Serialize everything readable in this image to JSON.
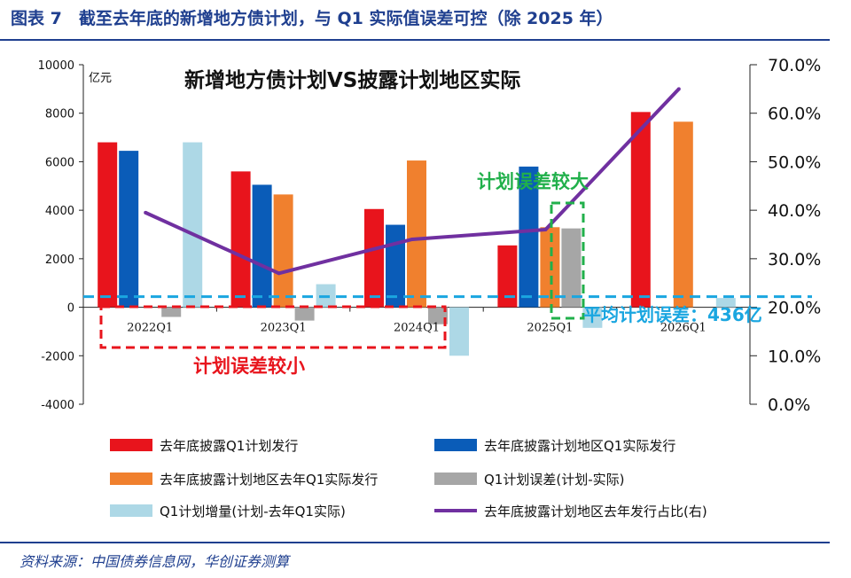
{
  "figure": {
    "title": "图表 7　截至去年底的新增地方债计划，与 Q1 实际值误差可控（除 2025 年）",
    "source": "资料来源：中国债券信息网，华创证券测算"
  },
  "chart_data": {
    "type": "bar",
    "title": "新增地方债计划VS披露计划地区实际",
    "unit_label": "亿元",
    "categories": [
      "2022Q1",
      "2023Q1",
      "2024Q1",
      "2025Q1",
      "2026Q1"
    ],
    "ylim": [
      -4000,
      10000
    ],
    "yticks": [
      -4000,
      -2000,
      0,
      2000,
      4000,
      6000,
      8000,
      10000
    ],
    "y2lim": [
      0,
      70
    ],
    "y2ticks": [
      "0.0%",
      "10.0%",
      "20.0%",
      "30.0%",
      "40.0%",
      "50.0%",
      "60.0%",
      "70.0%"
    ],
    "series": [
      {
        "name": "去年底披露Q1计划发行",
        "color": "#e8141c",
        "values": [
          6800,
          5600,
          4050,
          2550,
          8050
        ]
      },
      {
        "name": "去年底披露计划地区Q1实际发行",
        "color": "#0a5cb8",
        "values": [
          6450,
          5050,
          3400,
          5800,
          null
        ]
      },
      {
        "name": "去年底披露计划地区去年Q1实际发行",
        "color": "#f0802e",
        "values": [
          null,
          4650,
          6050,
          3300,
          7650
        ]
      },
      {
        "name": "Q1计划误差(计划-实际)",
        "color": "#a6a6a6",
        "values": [
          -400,
          -550,
          -700,
          3250,
          null
        ]
      },
      {
        "name": "Q1计划增量(计划-去年Q1实际)",
        "color": "#add8e6",
        "values": [
          6800,
          950,
          -2000,
          -850,
          380
        ]
      },
      {
        "name": "去年底披露计划地区去年发行占比(右)",
        "color": "#7030a0",
        "type": "line",
        "values": [
          39.5,
          27.0,
          34.0,
          36.0,
          65.0
        ]
      }
    ],
    "reference_line": {
      "value": 436,
      "color": "#1aa6e0"
    },
    "annotations": {
      "large_error": "计划误差较大",
      "small_error": "计划误差较小",
      "average_error": "平均计划误差：436亿"
    }
  }
}
